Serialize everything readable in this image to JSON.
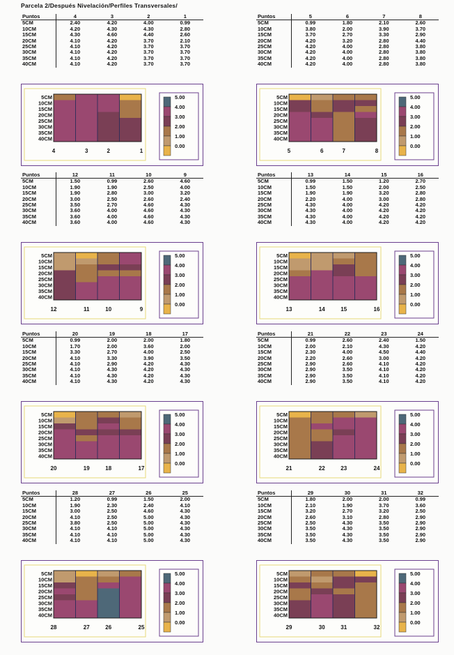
{
  "title": "Parcela 2/Después Nivelación/Perfiles Transversales/",
  "header_label": "Puntos",
  "legend": [
    "5.00",
    "4.00",
    "3.00",
    "2.00",
    "1.00",
    "0.00"
  ],
  "colors": {
    "c0": "#e8b34a",
    "c1": "#c09a6e",
    "c2": "#a8784a",
    "c3": "#7a3f55",
    "c4": "#9a4870",
    "c5": "#4e6878",
    "frame": "#6a3f8e"
  },
  "chart_data": [
    {
      "type": "heatmap",
      "points": [
        "4",
        "3",
        "2",
        "1"
      ],
      "depths": [
        "5CM",
        "10CM",
        "15CM",
        "20CM",
        "25CM",
        "30CM",
        "35CM",
        "40CM"
      ],
      "values": [
        [
          2.4,
          4.2,
          4.0,
          0.99
        ],
        [
          4.2,
          4.3,
          4.3,
          2.8
        ],
        [
          4.3,
          4.6,
          4.4,
          2.6
        ],
        [
          4.1,
          4.2,
          3.7,
          2.1
        ],
        [
          4.1,
          4.2,
          3.7,
          3.7
        ],
        [
          4.1,
          4.2,
          3.7,
          3.7
        ],
        [
          4.1,
          4.2,
          3.7,
          3.7
        ],
        [
          4.1,
          4.2,
          3.7,
          3.7
        ]
      ]
    },
    {
      "type": "heatmap",
      "points": [
        "5",
        "6",
        "7",
        "8"
      ],
      "depths": [
        "5CM",
        "10CM",
        "15CM",
        "20CM",
        "25CM",
        "30CM",
        "35CM",
        "40CM"
      ],
      "values": [
        [
          0.99,
          1.8,
          2.1,
          2.6
        ],
        [
          3.8,
          2.0,
          3.9,
          3.7
        ],
        [
          3.7,
          2.7,
          3.3,
          2.9
        ],
        [
          4.2,
          3.2,
          2.8,
          4.4
        ],
        [
          4.2,
          4.0,
          2.8,
          3.8
        ],
        [
          4.2,
          4.0,
          2.8,
          3.8
        ],
        [
          4.2,
          4.0,
          2.8,
          3.8
        ],
        [
          4.2,
          4.0,
          2.8,
          3.8
        ]
      ]
    },
    {
      "type": "heatmap",
      "points": [
        "12",
        "11",
        "10",
        "9"
      ],
      "depths": [
        "5CM",
        "10CM",
        "15CM",
        "20CM",
        "25CM",
        "30CM",
        "35CM",
        "40CM"
      ],
      "values": [
        [
          1.5,
          0.99,
          2.6,
          4.6
        ],
        [
          1.9,
          1.9,
          2.5,
          4.0
        ],
        [
          1.9,
          2.8,
          3.0,
          3.2
        ],
        [
          3.0,
          2.5,
          2.6,
          2.4
        ],
        [
          3.5,
          2.7,
          4.6,
          4.3
        ],
        [
          3.6,
          4.0,
          4.6,
          4.3
        ],
        [
          3.6,
          4.0,
          4.6,
          4.3
        ],
        [
          3.6,
          4.0,
          4.6,
          4.3
        ]
      ]
    },
    {
      "type": "heatmap",
      "points": [
        "13",
        "14",
        "15",
        "16"
      ],
      "depths": [
        "5CM",
        "10CM",
        "15CM",
        "20CM",
        "25CM",
        "30CM",
        "35CM",
        "40CM"
      ],
      "values": [
        [
          0.99,
          1.5,
          1.2,
          2.7
        ],
        [
          1.5,
          1.5,
          2.0,
          2.5
        ],
        [
          1.9,
          1.9,
          3.2,
          2.8
        ],
        [
          2.2,
          4.0,
          3.0,
          2.8
        ],
        [
          4.3,
          4.0,
          4.2,
          4.2
        ],
        [
          4.3,
          4.0,
          4.2,
          4.2
        ],
        [
          4.3,
          4.0,
          4.2,
          4.2
        ],
        [
          4.3,
          4.0,
          4.2,
          4.2
        ]
      ]
    },
    {
      "type": "heatmap",
      "points": [
        "20",
        "19",
        "18",
        "17"
      ],
      "depths": [
        "5CM",
        "10CM",
        "15CM",
        "20CM",
        "25CM",
        "30CM",
        "35CM",
        "40CM"
      ],
      "values": [
        [
          0.99,
          2.0,
          2.0,
          1.8
        ],
        [
          1.7,
          2.0,
          3.6,
          2.0
        ],
        [
          3.3,
          2.7,
          4.0,
          2.5
        ],
        [
          4.1,
          3.3,
          3.9,
          3.5
        ],
        [
          4.1,
          2.9,
          4.2,
          4.3
        ],
        [
          4.1,
          4.3,
          4.2,
          4.3
        ],
        [
          4.1,
          4.3,
          4.2,
          4.3
        ],
        [
          4.1,
          4.3,
          4.2,
          4.3
        ]
      ]
    },
    {
      "type": "heatmap",
      "points": [
        "21",
        "22",
        "23",
        "24"
      ],
      "depths": [
        "5CM",
        "10CM",
        "15CM",
        "20CM",
        "25CM",
        "30CM",
        "35CM",
        "40CM"
      ],
      "values": [
        [
          0.99,
          2.6,
          2.4,
          1.5
        ],
        [
          2.0,
          2.1,
          4.3,
          4.2
        ],
        [
          2.3,
          4.0,
          4.5,
          4.4
        ],
        [
          2.2,
          2.6,
          3.0,
          4.2
        ],
        [
          2.9,
          2.6,
          4.1,
          4.2
        ],
        [
          2.9,
          3.5,
          4.1,
          4.2
        ],
        [
          2.9,
          3.5,
          4.1,
          4.2
        ],
        [
          2.9,
          3.5,
          4.1,
          4.2
        ]
      ]
    },
    {
      "type": "heatmap",
      "points": [
        "28",
        "27",
        "26",
        "25"
      ],
      "depths": [
        "5CM",
        "10CM",
        "15CM",
        "20CM",
        "25CM",
        "30CM",
        "35CM",
        "40CM"
      ],
      "values": [
        [
          1.2,
          0.99,
          1.5,
          2.0
        ],
        [
          1.9,
          2.3,
          2.4,
          4.1
        ],
        [
          3.0,
          2.5,
          4.6,
          4.3
        ],
        [
          4.1,
          2.5,
          5.0,
          4.3
        ],
        [
          3.8,
          2.5,
          5.0,
          4.3
        ],
        [
          4.1,
          4.1,
          5.0,
          4.3
        ],
        [
          4.1,
          4.1,
          5.0,
          4.3
        ],
        [
          4.1,
          4.1,
          5.0,
          4.3
        ]
      ]
    },
    {
      "type": "heatmap",
      "points": [
        "29",
        "30",
        "31",
        "32"
      ],
      "depths": [
        "5CM",
        "10CM",
        "15CM",
        "20CM",
        "25CM",
        "30CM",
        "35CM",
        "40CM"
      ],
      "values": [
        [
          1.8,
          2.0,
          2.0,
          0.99
        ],
        [
          2.1,
          1.9,
          3.7,
          3.6
        ],
        [
          3.2,
          2.7,
          3.2,
          2.5
        ],
        [
          2.6,
          3.1,
          2.8,
          2.9
        ],
        [
          2.5,
          4.3,
          3.5,
          2.9
        ],
        [
          3.5,
          4.3,
          3.5,
          2.9
        ],
        [
          3.5,
          4.3,
          3.5,
          2.9
        ],
        [
          3.5,
          4.3,
          3.5,
          2.9
        ]
      ]
    }
  ]
}
